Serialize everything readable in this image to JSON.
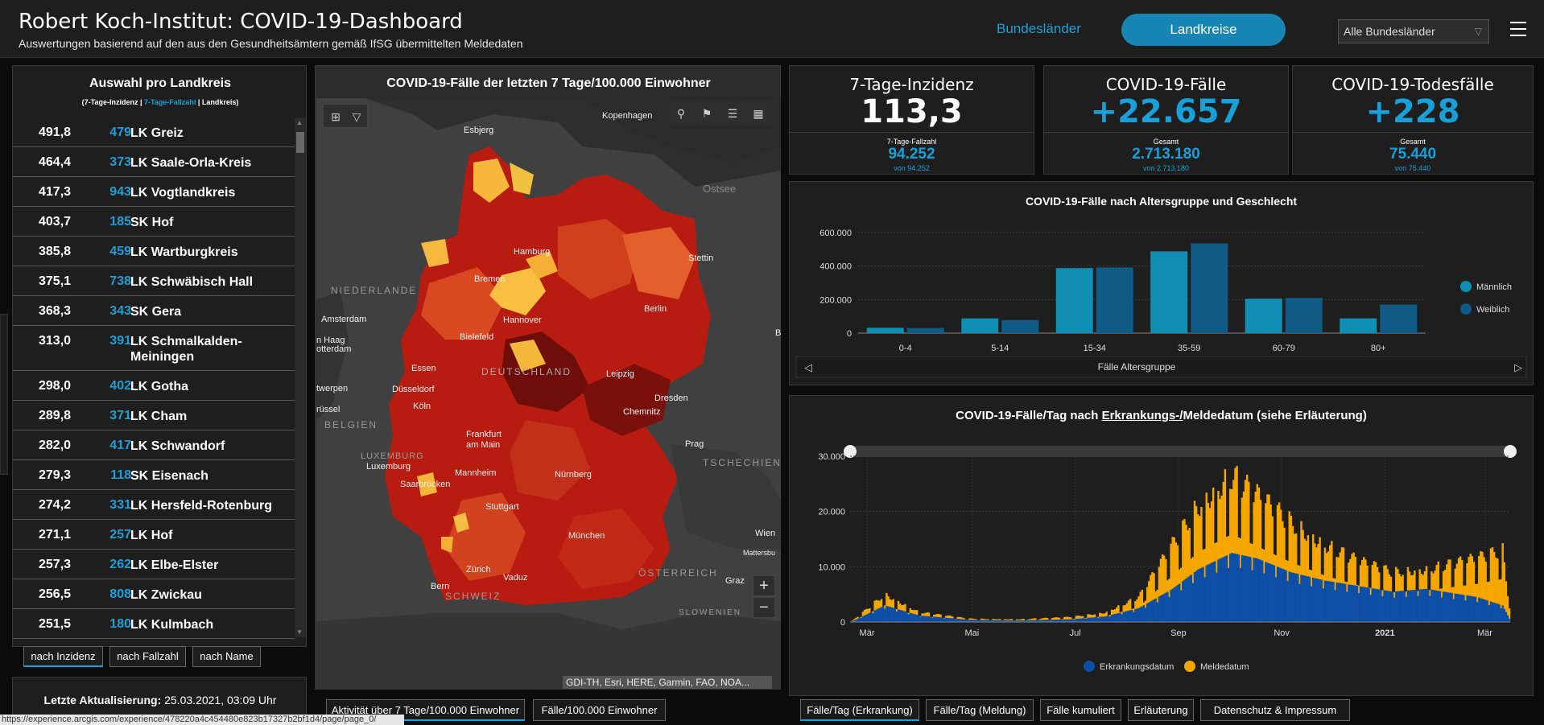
{
  "header": {
    "title": "Robert Koch-Institut: COVID-19-Dashboard",
    "subtitle": "Auswertungen basierend auf den aus den Gesundheitsämtern gemäß IfSG übermittelten Meldedaten",
    "nav_bundeslaender": "Bundesländer",
    "nav_landkreise": "Landkreise",
    "filter_value": "Alle Bundesländer"
  },
  "left_panel": {
    "title": "Auswahl pro Landkreis",
    "legend_part1": "(7-Tage-Inzidenz | ",
    "legend_part2": "7-Tage-Fallzahl",
    "legend_part3": " | Landkreis)",
    "rows": [
      {
        "inzidenz": "491,8",
        "fallzahl": "479",
        "name": "LK Greiz"
      },
      {
        "inzidenz": "464,4",
        "fallzahl": "373",
        "name": "LK Saale-Orla-Kreis"
      },
      {
        "inzidenz": "417,3",
        "fallzahl": "943",
        "name": "LK Vogtlandkreis"
      },
      {
        "inzidenz": "403,7",
        "fallzahl": "185",
        "name": "SK Hof"
      },
      {
        "inzidenz": "385,8",
        "fallzahl": "459",
        "name": "LK Wartburgkreis"
      },
      {
        "inzidenz": "375,1",
        "fallzahl": "738",
        "name": "LK Schwäbisch Hall"
      },
      {
        "inzidenz": "368,3",
        "fallzahl": "343",
        "name": "SK Gera"
      },
      {
        "inzidenz": "313,0",
        "fallzahl": "391",
        "name": "LK Schmalkalden-Meiningen"
      },
      {
        "inzidenz": "298,0",
        "fallzahl": "402",
        "name": "LK Gotha"
      },
      {
        "inzidenz": "289,8",
        "fallzahl": "371",
        "name": "LK Cham"
      },
      {
        "inzidenz": "282,0",
        "fallzahl": "417",
        "name": "LK Schwandorf"
      },
      {
        "inzidenz": "279,3",
        "fallzahl": "118",
        "name": "SK Eisenach"
      },
      {
        "inzidenz": "274,2",
        "fallzahl": "331",
        "name": "LK Hersfeld-Rotenburg"
      },
      {
        "inzidenz": "271,1",
        "fallzahl": "257",
        "name": "LK Hof"
      },
      {
        "inzidenz": "257,3",
        "fallzahl": "262",
        "name": "LK Elbe-Elster"
      },
      {
        "inzidenz": "256,5",
        "fallzahl": "808",
        "name": "LK Zwickau"
      },
      {
        "inzidenz": "251,5",
        "fallzahl": "180",
        "name": "LK Kulmbach"
      }
    ],
    "sort_tabs": [
      "nach Inzidenz",
      "nach Fallzahl",
      "nach Name"
    ],
    "update_label": "Letzte Aktualisierung:",
    "update_value": " 25.03.2021, 03:09 Uhr"
  },
  "map": {
    "title": "COVID-19-Fälle der letzten 7 Tage/100.000 Einwohner",
    "attribution": "GDI-TH, Esri, HERE, Garmin, FAO, NOA...",
    "zoom_in": "+",
    "zoom_out": "−",
    "labels": {
      "esbjerg": "Esbjerg",
      "kopenhagen": "Kopenhagen",
      "ostsee": "Ostsee",
      "hamburg": "Hamburg",
      "stettin": "Stettin",
      "bremen": "Bremen",
      "niederlande": "NIEDERLANDE",
      "amsterdam": "Amsterdam",
      "hannover": "Hannover",
      "berlin": "Berlin",
      "den_haag": "n Haag",
      "rotterdam": "otterdam",
      "bielefeld": "Bielefeld",
      "deutschland": "DEUTSCHLAND",
      "essen": "Essen",
      "leipzig": "Leipzig",
      "antwerpen": "twerpen",
      "duesseldorf": "Düsseldorf",
      "dresden": "Dresden",
      "bruessel": "rüssel",
      "koeln": "Köln",
      "chemnitz": "Chemnitz",
      "belgien": "BELGIEN",
      "frankfurt": "Frankfurt am Main",
      "prag": "Prag",
      "luxemburg_country": "LUXEMBURG",
      "luxemburg": "Luxemburg",
      "tschechien": "TSCHECHIEN",
      "mannheim": "Mannheim",
      "nuernberg": "Nürnberg",
      "saarbruecken": "Saarbrücken",
      "stuttgart": "Stuttgart",
      "wien": "Wien",
      "muenchen": "München",
      "mattersbu": "Mattersbu",
      "zuerich": "Zürich",
      "oesterreich": "ÖSTERREICH",
      "vaduz": "Vaduz",
      "graz": "Graz",
      "bern": "Bern",
      "schweiz": "SCHWEIZ",
      "slowenien": "SLOWENIEN",
      "b": "B"
    }
  },
  "kpis": [
    {
      "title": "7-Tage-Inzidenz",
      "value": "113,3",
      "sub_label": "7-Tage-Fallzahl",
      "sub_value": "94.252",
      "sub_small": "von 94.252"
    },
    {
      "title": "COVID-19-Fälle",
      "value": "+22.657",
      "sub_label": "Gesamt",
      "sub_value": "2.713.180",
      "sub_small": "von 2.713.180"
    },
    {
      "title": "COVID-19-Todesfälle",
      "value": "+228",
      "sub_label": "Gesamt",
      "sub_value": "75.440",
      "sub_small": "von 75.440"
    }
  ],
  "colors": {
    "accent": "#1aa0d8",
    "male": "#0f8fb4",
    "female": "#0f5b85",
    "erkrankung": "#0d4fa6",
    "meldung": "#f5a700"
  },
  "chart_data": [
    {
      "type": "bar",
      "title": "COVID-19-Fälle nach Altersgruppe und Geschlecht",
      "xlabel": "Fälle Altersgruppe",
      "ylabel": "",
      "categories": [
        "0-4",
        "5-14",
        "15-34",
        "35-59",
        "60-79",
        "80+"
      ],
      "series": [
        {
          "name": "Männlich",
          "values": [
            32000,
            88000,
            388000,
            488000,
            205000,
            88000
          ]
        },
        {
          "name": "Weiblich",
          "values": [
            30000,
            78000,
            392000,
            535000,
            210000,
            170000
          ]
        }
      ],
      "yticks": [
        "0",
        "200.000",
        "400.000",
        "600.000"
      ],
      "ylim": [
        0,
        600000
      ],
      "legend": "right"
    },
    {
      "type": "bar",
      "title_prefix": "COVID-19-Fälle/Tag nach ",
      "title_underlined": "Erkrankungs-/",
      "title_suffix": "Meldedatum (siehe Erläuterung)",
      "xticks": [
        "Mär",
        "Mai",
        "Jul",
        "Sep",
        "Nov",
        "2021",
        "Mär"
      ],
      "yticks": [
        "0",
        "10.000",
        "20.000",
        "30.000"
      ],
      "ylim": [
        0,
        30000
      ],
      "legend": "bottom",
      "series": [
        {
          "name": "Erkrankungsdatum",
          "anchors": [
            [
              0,
              0
            ],
            [
              20,
              3000
            ],
            [
              40,
              1200
            ],
            [
              70,
              400
            ],
            [
              100,
              300
            ],
            [
              130,
              500
            ],
            [
              150,
              1000
            ],
            [
              170,
              2500
            ],
            [
              190,
              6000
            ],
            [
              205,
              9500
            ],
            [
              225,
              12500
            ],
            [
              240,
              11500
            ],
            [
              260,
              9000
            ],
            [
              280,
              7500
            ],
            [
              300,
              6500
            ],
            [
              320,
              5500
            ],
            [
              340,
              6000
            ],
            [
              370,
              4500
            ],
            [
              385,
              3000
            ],
            [
              390,
              0
            ]
          ]
        },
        {
          "name": "Meldedatum",
          "anchors": [
            [
              0,
              0
            ],
            [
              20,
              5000
            ],
            [
              40,
              1800
            ],
            [
              70,
              600
            ],
            [
              100,
              500
            ],
            [
              130,
              900
            ],
            [
              150,
              1700
            ],
            [
              170,
              4500
            ],
            [
              190,
              14000
            ],
            [
              205,
              21000
            ],
            [
              225,
              26500
            ],
            [
              235,
              24000
            ],
            [
              260,
              18000
            ],
            [
              280,
              14000
            ],
            [
              300,
              11000
            ],
            [
              320,
              9000
            ],
            [
              340,
              9500
            ],
            [
              370,
              11500
            ],
            [
              385,
              13000
            ],
            [
              390,
              0
            ]
          ]
        }
      ]
    }
  ],
  "bottom_tabs_left": [
    "Aktivität über 7 Tage/100.000 Einwohner",
    "Fälle/100.000 Einwohner"
  ],
  "bottom_tabs_right": [
    "Fälle/Tag (Erkrankung)",
    "Fälle/Tag (Meldung)",
    "Fälle kumuliert",
    "Erläuterung",
    "Datenschutz & Impressum"
  ],
  "statusbar": "https://experience.arcgis.com/experience/478220a4c454480e823b17327b2bf1d4/page/page_0/"
}
